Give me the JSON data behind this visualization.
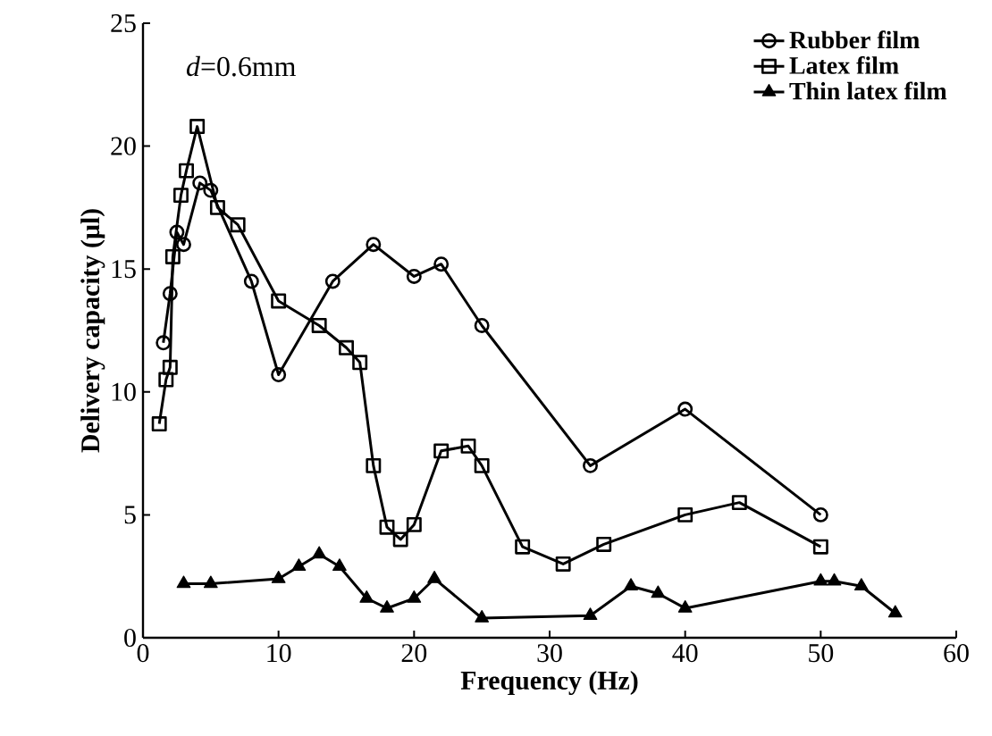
{
  "chart_data": {
    "type": "line",
    "xlabel": "Frequency (Hz)",
    "ylabel": "Delivery capacity (μl)",
    "annotations": [
      "*d*=0.6mm"
    ],
    "xlim": [
      0,
      60
    ],
    "ylim": [
      0,
      25
    ],
    "xticks": [
      0,
      10,
      20,
      30,
      40,
      50,
      60
    ],
    "yticks": [
      0,
      5,
      10,
      15,
      20,
      25
    ],
    "legend": "top right",
    "grid": false,
    "line_style": "solid",
    "series": [
      {
        "name": "Rubber film",
        "color": "#000000",
        "marker": "circle",
        "x": [
          1.5,
          2,
          2.5,
          3,
          4.2,
          5,
          8,
          10,
          14,
          17,
          20,
          22,
          25,
          33,
          40,
          50
        ],
        "values": [
          12,
          14,
          16.5,
          16,
          18.5,
          18.2,
          14.5,
          10.7,
          14.5,
          16,
          14.7,
          15.2,
          12.7,
          7,
          9.3,
          5
        ]
      },
      {
        "name": "Latex film",
        "color": "#000000",
        "marker": "square",
        "x": [
          1.2,
          1.7,
          2,
          2.2,
          2.8,
          3.2,
          4,
          5.5,
          7,
          10,
          13,
          15,
          16,
          17,
          18,
          19,
          20,
          22,
          24,
          25,
          28,
          31,
          34,
          40,
          44,
          50
        ],
        "values": [
          8.7,
          10.5,
          11,
          15.5,
          18,
          19,
          20.8,
          17.5,
          16.8,
          13.7,
          12.7,
          11.8,
          11.2,
          7,
          4.5,
          4,
          4.6,
          7.6,
          7.8,
          7,
          3.7,
          3,
          3.8,
          5,
          5.5,
          3.7
        ]
      },
      {
        "name": "Thin latex film",
        "color": "#000000",
        "marker": "triangle",
        "x": [
          3,
          5,
          10,
          11.5,
          13,
          14.5,
          16.5,
          18,
          20,
          21.5,
          25,
          33,
          36,
          38,
          40,
          50,
          51,
          53,
          55.5
        ],
        "values": [
          2.2,
          2.2,
          2.4,
          2.9,
          3.4,
          2.9,
          1.6,
          1.2,
          1.6,
          2.4,
          0.8,
          0.9,
          2.1,
          1.8,
          1.2,
          2.3,
          2.3,
          2.1,
          1
        ]
      }
    ]
  }
}
